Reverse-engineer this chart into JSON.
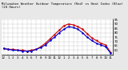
{
  "title": "Milwaukee Weather Outdoor Temperature (Red) vs Heat Index (Blue) (24 Hours)",
  "title_fontsize": 2.8,
  "background_color": "#e8e8e8",
  "plot_bg_color": "#ffffff",
  "line_color_temp": "#cc0000",
  "line_color_heat": "#0000cc",
  "ylim": [
    55,
    95
  ],
  "yticks": [
    60,
    65,
    70,
    75,
    80,
    85,
    90,
    95
  ],
  "ytick_labels": [
    "60",
    "65",
    "70",
    "75",
    "80",
    "85",
    "90",
    "95"
  ],
  "hours": [
    0,
    1,
    2,
    3,
    4,
    5,
    6,
    7,
    8,
    9,
    10,
    11,
    12,
    13,
    14,
    15,
    16,
    17,
    18,
    19,
    20,
    21,
    22,
    23
  ],
  "xtick_labels": [
    "12",
    "1",
    "2",
    "3",
    "4",
    "5",
    "6",
    "7",
    "8",
    "9",
    "10",
    "11",
    "12",
    "1",
    "2",
    "3",
    "4",
    "5",
    "6",
    "7",
    "8",
    "9",
    "10",
    "11"
  ],
  "temp": [
    62,
    61,
    61,
    60,
    60,
    59,
    60,
    61,
    64,
    68,
    73,
    78,
    83,
    88,
    90,
    89,
    87,
    84,
    79,
    74,
    71,
    68,
    66,
    58
  ],
  "heat": [
    62,
    61,
    60,
    60,
    59,
    59,
    59,
    61,
    63,
    66,
    71,
    75,
    80,
    84,
    87,
    86,
    84,
    80,
    75,
    71,
    68,
    66,
    64,
    57
  ],
  "grid_color": "#999999",
  "grid_style": "--",
  "grid_alpha": 0.8,
  "linewidth": 0.8,
  "marker": ".",
  "markersize": 1.5,
  "tick_fontsize": 2.8
}
